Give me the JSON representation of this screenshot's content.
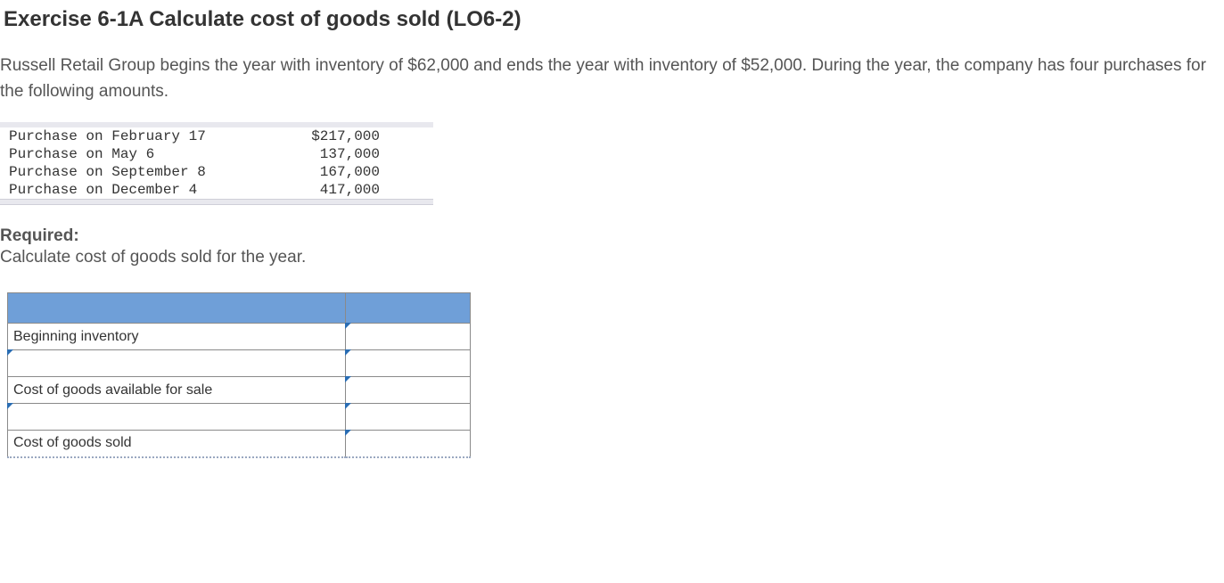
{
  "title": "Exercise 6-1A Calculate cost of goods sold (LO6-2)",
  "problem": "Russell Retail Group begins the year with inventory of $62,000 and ends the year with inventory of $52,000. During the year, the company has four purchases for the following amounts.",
  "purchases": {
    "colors": {
      "band_bg": "#e8e8ee",
      "band_border": "#cfcfd8",
      "text": "#333333"
    },
    "font": "Courier New",
    "rows": [
      {
        "label": "Purchase on February 17",
        "amount": "$217,000"
      },
      {
        "label": "Purchase on May 6",
        "amount": "137,000"
      },
      {
        "label": "Purchase on September 8",
        "amount": "167,000"
      },
      {
        "label": "Purchase on December 4",
        "amount": "417,000"
      }
    ]
  },
  "required": {
    "label": "Required:",
    "text": "Calculate cost of goods sold for the year."
  },
  "calc": {
    "colors": {
      "header_bg": "#6f9fd8",
      "border": "#8a8a8a",
      "corner_marker": "#2a6db3"
    },
    "rows": [
      {
        "label": "Beginning inventory",
        "label_editable": false,
        "amount_editable": true
      },
      {
        "label": "",
        "label_editable": true,
        "amount_editable": true
      },
      {
        "label": "Cost of goods available for sale",
        "label_editable": false,
        "amount_editable": true
      },
      {
        "label": "",
        "label_editable": true,
        "amount_editable": true
      },
      {
        "label": "Cost of goods sold",
        "label_editable": false,
        "amount_editable": true
      }
    ]
  }
}
